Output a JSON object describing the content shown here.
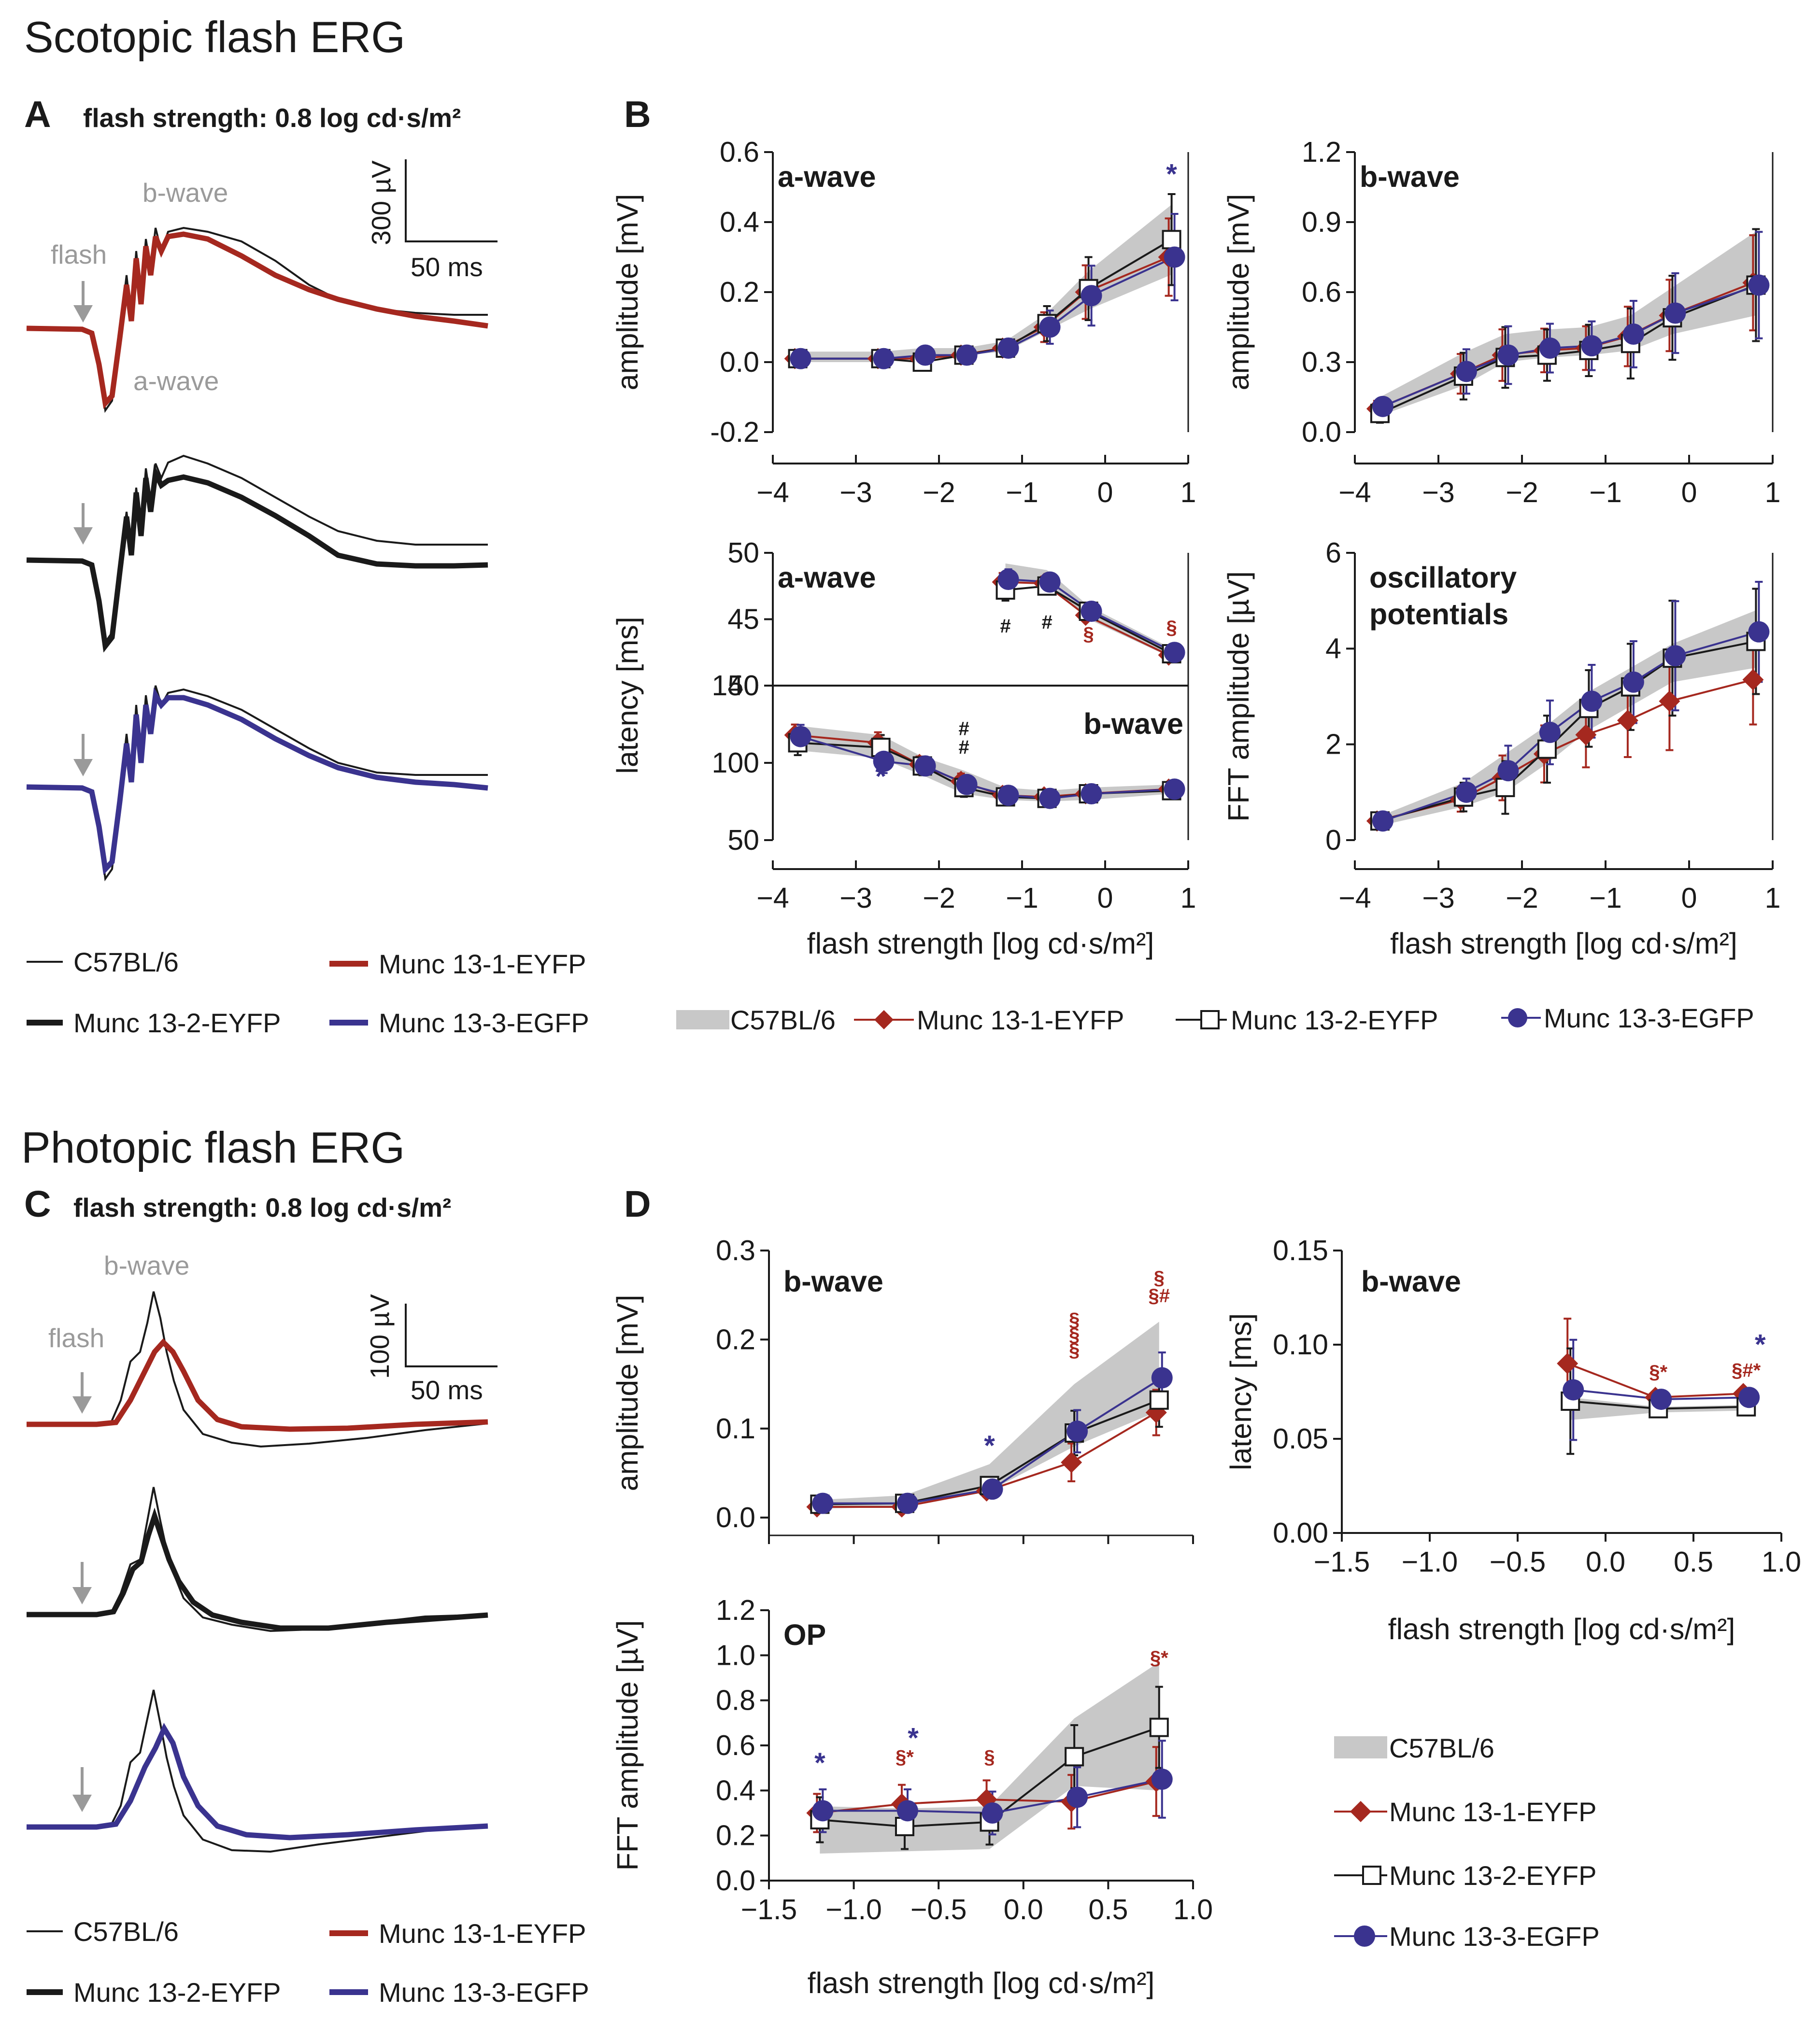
{
  "sections": {
    "scotopic_title": "Scotopic flash ERG",
    "photopic_title": "Photopic flash ERG"
  },
  "panels": {
    "A": {
      "letter": "A",
      "flash_label": "flash strength: 0.8 log cd·s/m²",
      "scale_y": "300 µV",
      "scale_x": "50 ms",
      "flash": "flash",
      "awave": "a-wave",
      "bwave": "b-wave"
    },
    "B": {
      "letter": "B"
    },
    "C": {
      "letter": "C",
      "flash_label": "flash strength: 0.8 log cd·s/m²",
      "scale_y": "100 µV",
      "scale_x": "50 ms",
      "flash": "flash",
      "bwave": "b-wave"
    },
    "D": {
      "letter": "D"
    }
  },
  "trace_legend": [
    "C57BL/6",
    "Munc 13-1-EYFP",
    "Munc 13-2-EYFP",
    "Munc 13-3-EGFP"
  ],
  "series_legend": [
    "C57BL/6",
    "Munc 13-1-EYFP",
    "Munc 13-2-EYFP",
    "Munc 13-3-EGFP"
  ],
  "colors": {
    "wt": "#1a1a1a",
    "m1": "#a5281f",
    "m2": "#1a1a1a",
    "m3": "#3a338f",
    "band": "#c8c8c8"
  },
  "chart_data": [
    {
      "id": "B1",
      "type": "line",
      "title": "a-wave",
      "xlabel": "",
      "ylabel": "amplitude [mV]",
      "xlim": [
        -4,
        1
      ],
      "ylim": [
        -0.2,
        0.6
      ],
      "xticks": [
        -4,
        -3,
        -2,
        -1,
        0,
        1
      ],
      "xtick_labels": [
        "−4",
        "−3",
        "−2",
        "−1",
        "0",
        "1"
      ],
      "yticks": [
        -0.2,
        0,
        0.2,
        0.4,
        0.6
      ],
      "ytick_labels": [
        "-0.2",
        "0.0",
        "0.2",
        "0.4",
        "0.6"
      ],
      "x": [
        -3.7,
        -2.7,
        -2.2,
        -1.7,
        -1.2,
        -0.7,
        -0.2,
        0.8
      ],
      "band": {
        "name": "C57BL/6",
        "lower": [
          0.0,
          0.0,
          0.01,
          0.02,
          0.03,
          0.09,
          0.15,
          0.25
        ],
        "upper": [
          0.03,
          0.03,
          0.04,
          0.04,
          0.06,
          0.14,
          0.26,
          0.45
        ]
      },
      "series": [
        {
          "name": "Munc 13-1-EYFP",
          "values": [
            0.01,
            0.01,
            0.01,
            0.02,
            0.04,
            0.1,
            0.2,
            0.3
          ]
        },
        {
          "name": "Munc 13-2-EYFP",
          "values": [
            0.01,
            0.01,
            0.0,
            0.02,
            0.04,
            0.11,
            0.21,
            0.35
          ]
        },
        {
          "name": "Munc 13-3-EGFP",
          "values": [
            0.01,
            0.01,
            0.02,
            0.02,
            0.04,
            0.1,
            0.19,
            0.3
          ]
        }
      ],
      "errors": [
        0.02,
        0.02,
        0.02,
        0.02,
        0.02,
        0.05,
        0.09,
        0.13
      ],
      "annotations": [
        {
          "text": "*",
          "x": 0.8,
          "y": 0.51,
          "color": "m3"
        }
      ]
    },
    {
      "id": "B2",
      "type": "line",
      "title": "b-wave",
      "xlabel": "",
      "ylabel": "amplitude [mV]",
      "xlim": [
        -4,
        1
      ],
      "ylim": [
        0,
        1.2
      ],
      "xticks": [
        -4,
        -3,
        -2,
        -1,
        0,
        1
      ],
      "xtick_labels": [
        "−4",
        "−3",
        "−2",
        "−1",
        "0",
        "1"
      ],
      "yticks": [
        0,
        0.3,
        0.6,
        0.9,
        1.2
      ],
      "ytick_labels": [
        "0.0",
        "0.3",
        "0.6",
        "0.9",
        "1.2"
      ],
      "x": [
        -3.7,
        -2.7,
        -2.2,
        -1.7,
        -1.2,
        -0.7,
        -0.2,
        0.8
      ],
      "band": {
        "name": "C57BL/6",
        "lower": [
          0.07,
          0.2,
          0.3,
          0.32,
          0.33,
          0.35,
          0.42,
          0.5
        ],
        "upper": [
          0.15,
          0.34,
          0.42,
          0.44,
          0.45,
          0.5,
          0.62,
          0.86
        ]
      },
      "series": [
        {
          "name": "Munc 13-1-EYFP",
          "values": [
            0.1,
            0.25,
            0.33,
            0.35,
            0.36,
            0.41,
            0.5,
            0.64
          ]
        },
        {
          "name": "Munc 13-2-EYFP",
          "values": [
            0.08,
            0.24,
            0.32,
            0.33,
            0.35,
            0.38,
            0.49,
            0.63
          ]
        },
        {
          "name": "Munc 13-3-EGFP",
          "values": [
            0.11,
            0.26,
            0.33,
            0.36,
            0.37,
            0.42,
            0.51,
            0.63
          ]
        }
      ],
      "errors": [
        0.04,
        0.1,
        0.13,
        0.11,
        0.11,
        0.15,
        0.18,
        0.24
      ],
      "annotations": []
    },
    {
      "id": "B3a",
      "type": "line",
      "title": "a-wave",
      "xlabel": "",
      "ylabel": "latency [ms]",
      "xlim": [
        -4,
        1
      ],
      "ylim": [
        40,
        50
      ],
      "yticks": [
        40,
        45,
        50
      ],
      "ytick_labels": [
        "40",
        "45",
        "50"
      ],
      "x": [
        -1.2,
        -0.7,
        -0.2,
        0.8
      ],
      "band": {
        "name": "C57BL/6",
        "lower": [
          47.8,
          47.8,
          45.0,
          42.1
        ],
        "upper": [
          49.2,
          48.7,
          46.0,
          42.8
        ]
      },
      "series": [
        {
          "name": "Munc 13-1-EYFP",
          "values": [
            47.8,
            47.7,
            45.3,
            42.3
          ]
        },
        {
          "name": "Munc 13-2-EYFP",
          "values": [
            47.2,
            47.5,
            45.6,
            42.4
          ]
        },
        {
          "name": "Munc 13-3-EGFP",
          "values": [
            48.0,
            47.8,
            45.6,
            42.5
          ]
        }
      ],
      "errors": [
        0.8,
        0.6,
        0.5,
        0.4
      ],
      "annotations": [
        {
          "text": "#",
          "x": -1.2,
          "y": 44.0,
          "color": "wt"
        },
        {
          "text": "#",
          "x": -0.7,
          "y": 44.3,
          "color": "wt"
        },
        {
          "text": "§",
          "x": -0.2,
          "y": 43.4,
          "color": "m1"
        },
        {
          "text": "§",
          "x": 0.8,
          "y": 43.9,
          "color": "m1"
        }
      ]
    },
    {
      "id": "B3b",
      "type": "line",
      "title": "b-wave",
      "xlabel": "flash strength [log cd·s/m²]",
      "ylabel": "",
      "xlim": [
        -4,
        1
      ],
      "ylim": [
        50,
        150
      ],
      "xticks": [
        -4,
        -3,
        -2,
        -1,
        0,
        1
      ],
      "xtick_labels": [
        "−4",
        "−3",
        "−2",
        "−1",
        "0",
        "1"
      ],
      "yticks": [
        50,
        100,
        150
      ],
      "ytick_labels": [
        "50",
        "100",
        "150"
      ],
      "x": [
        -3.7,
        -2.7,
        -2.2,
        -1.7,
        -1.2,
        -0.7,
        -0.2,
        0.8
      ],
      "band": {
        "name": "C57BL/6",
        "lower": [
          108,
          103,
          92,
          80,
          76,
          75,
          76,
          80
        ],
        "upper": [
          124,
          118,
          104,
          95,
          84,
          82,
          84,
          86
        ]
      },
      "series": [
        {
          "name": "Munc 13-1-EYFP",
          "values": [
            118,
            113,
            99,
            88,
            79,
            78,
            80,
            83
          ]
        },
        {
          "name": "Munc 13-2-EYFP",
          "values": [
            113,
            110,
            98,
            84,
            78,
            77,
            80,
            82
          ]
        },
        {
          "name": "Munc 13-3-EGFP",
          "values": [
            117,
            101,
            98,
            86,
            79,
            77,
            80,
            83
          ]
        }
      ],
      "errors": [
        8,
        8,
        6,
        6,
        4,
        4,
        4,
        3
      ],
      "annotations": [
        {
          "text": "*",
          "x": -2.7,
          "y": 85,
          "color": "m3"
        },
        {
          "text": "#",
          "x": -1.7,
          "y": 118,
          "color": "wt"
        },
        {
          "text": "#",
          "x": -1.7,
          "y": 106,
          "color": "wt"
        }
      ]
    },
    {
      "id": "B4",
      "type": "line",
      "title": "oscillatory potentials",
      "xlabel": "flash strength [log cd·s/m²]",
      "ylabel": "FFT amplitude [µV]",
      "xlim": [
        -4,
        1
      ],
      "ylim": [
        0,
        6
      ],
      "xticks": [
        -4,
        -3,
        -2,
        -1,
        0,
        1
      ],
      "xtick_labels": [
        "−4",
        "−3",
        "−2",
        "−1",
        "0",
        "1"
      ],
      "yticks": [
        0,
        2,
        4,
        6
      ],
      "ytick_labels": [
        "0",
        "2",
        "4",
        "6"
      ],
      "x": [
        -3.7,
        -2.7,
        -2.2,
        -1.7,
        -1.2,
        -0.7,
        -0.2,
        0.8
      ],
      "band": {
        "name": "C57BL/6",
        "lower": [
          0.3,
          0.7,
          1.0,
          1.6,
          2.3,
          2.8,
          3.3,
          3.6
        ],
        "upper": [
          0.5,
          1.2,
          1.8,
          2.4,
          3.1,
          3.6,
          4.1,
          4.8
        ]
      },
      "series": [
        {
          "name": "Munc 13-1-EYFP",
          "values": [
            0.4,
            0.85,
            1.3,
            1.8,
            2.2,
            2.5,
            2.9,
            3.35
          ]
        },
        {
          "name": "Munc 13-2-EYFP",
          "values": [
            0.4,
            0.9,
            1.1,
            1.9,
            2.75,
            3.2,
            3.8,
            4.15
          ]
        },
        {
          "name": "Munc 13-3-EGFP",
          "values": [
            0.4,
            1.0,
            1.45,
            2.25,
            2.9,
            3.3,
            3.85,
            4.35
          ]
        }
      ],
      "errors": [
        0.15,
        0.3,
        0.55,
        0.7,
        0.8,
        0.9,
        1.2,
        1.1
      ],
      "annotations": []
    },
    {
      "id": "D1",
      "type": "line",
      "title": "b-wave",
      "xlabel": "",
      "ylabel": "amplitude [mV]",
      "xlim": [
        -1.5,
        1.0
      ],
      "ylim": [
        -0.02,
        0.3
      ],
      "yticks": [
        0,
        0.1,
        0.2,
        0.3
      ],
      "ytick_labels": [
        "0.0",
        "0.1",
        "0.2",
        "0.3"
      ],
      "x": [
        -1.2,
        -0.7,
        -0.2,
        0.3,
        0.8
      ],
      "band": {
        "name": "C57BL/6",
        "lower": [
          0.01,
          0.012,
          0.03,
          0.08,
          0.12
        ],
        "upper": [
          0.02,
          0.025,
          0.06,
          0.15,
          0.22
        ]
      },
      "series": [
        {
          "name": "Munc 13-1-EYFP",
          "values": [
            0.012,
            0.012,
            0.03,
            0.062,
            0.118
          ]
        },
        {
          "name": "Munc 13-2-EYFP",
          "values": [
            0.015,
            0.016,
            0.036,
            0.095,
            0.132
          ]
        },
        {
          "name": "Munc 13-3-EGFP",
          "values": [
            0.016,
            0.016,
            0.032,
            0.097,
            0.157
          ]
        }
      ],
      "errors": [
        0.004,
        0.004,
        0.008,
        0.025,
        0.03
      ],
      "annotations": [
        {
          "text": "*",
          "x": -0.2,
          "y": 0.07,
          "color": "m3"
        },
        {
          "text": "§",
          "x": 0.3,
          "y": 0.215,
          "color": "m1"
        },
        {
          "text": "§",
          "x": 0.3,
          "y": 0.198,
          "color": "m1"
        },
        {
          "text": "§",
          "x": 0.3,
          "y": 0.181,
          "color": "m1"
        },
        {
          "text": "§",
          "x": 0.8,
          "y": 0.262,
          "color": "m1"
        },
        {
          "text": "§#",
          "x": 0.8,
          "y": 0.242,
          "color": "m1"
        }
      ]
    },
    {
      "id": "D2",
      "type": "line",
      "title": "b-wave",
      "xlabel": "flash strength [log cd·s/m²]",
      "ylabel": "latency [ms]",
      "xlim": [
        -1.5,
        1.0
      ],
      "ylim": [
        0,
        0.15
      ],
      "xticks": [
        -1.5,
        -1.0,
        -0.5,
        0.0,
        0.5,
        1.0
      ],
      "xtick_labels": [
        "−1.5",
        "−1.0",
        "−0.5",
        "0.0",
        "0.5",
        "1.0"
      ],
      "yticks": [
        0,
        0.05,
        0.1,
        0.15
      ],
      "ytick_labels": [
        "0.00",
        "0.05",
        "0.10",
        "0.15"
      ],
      "x": [
        -0.2,
        0.3,
        0.8
      ],
      "band": {
        "name": "C57BL/6",
        "lower": [
          0.06,
          0.064,
          0.065
        ],
        "upper": [
          0.072,
          0.067,
          0.068
        ]
      },
      "series": [
        {
          "name": "Munc 13-1-EYFP",
          "values": [
            0.09,
            0.072,
            0.074
          ]
        },
        {
          "name": "Munc 13-2-EYFP",
          "values": [
            0.07,
            0.066,
            0.067
          ]
        },
        {
          "name": "Munc 13-3-EGFP",
          "values": [
            0.076,
            0.071,
            0.072
          ]
        }
      ],
      "errors": [
        0.028,
        0.003,
        0.003
      ],
      "annotations": [
        {
          "text": "§*",
          "x": 0.3,
          "y": 0.082,
          "color": "m1"
        },
        {
          "text": "§#*",
          "x": 0.8,
          "y": 0.083,
          "color": "m1"
        },
        {
          "text": "*",
          "x": 0.88,
          "y": 0.095,
          "color": "m3"
        }
      ]
    },
    {
      "id": "D3",
      "type": "line",
      "title": "OP",
      "xlabel": "flash strength [log cd·s/m²]",
      "ylabel": "FFT amplitude [µV]",
      "xlim": [
        -1.5,
        1.0
      ],
      "ylim": [
        0,
        1.2
      ],
      "xticks": [
        -1.5,
        -1.0,
        -0.5,
        0.0,
        0.5,
        1.0
      ],
      "xtick_labels": [
        "−1.5",
        "−1.0",
        "−0.5",
        "0.0",
        "0.5",
        "1.0"
      ],
      "yticks": [
        0,
        0.2,
        0.4,
        0.6,
        0.8,
        1.0,
        1.2
      ],
      "ytick_labels": [
        "0.0",
        "0.2",
        "0.4",
        "0.6",
        "0.8",
        "1.0",
        "1.2"
      ],
      "x": [
        -1.2,
        -0.7,
        -0.2,
        0.3,
        0.8
      ],
      "band": {
        "name": "C57BL/6",
        "lower": [
          0.12,
          0.13,
          0.14,
          0.42,
          0.4
        ],
        "upper": [
          0.33,
          0.32,
          0.33,
          0.72,
          0.97
        ]
      },
      "series": [
        {
          "name": "Munc 13-1-EYFP",
          "values": [
            0.3,
            0.34,
            0.36,
            0.35,
            0.44
          ]
        },
        {
          "name": "Munc 13-2-EYFP",
          "values": [
            0.27,
            0.24,
            0.26,
            0.55,
            0.68
          ]
        },
        {
          "name": "Munc 13-3-EGFP",
          "values": [
            0.31,
            0.31,
            0.3,
            0.37,
            0.45
          ]
        }
      ],
      "errors": [
        0.1,
        0.1,
        0.1,
        0.14,
        0.18
      ],
      "annotations": [
        {
          "text": "*",
          "x": -1.2,
          "y": 0.48,
          "color": "m3"
        },
        {
          "text": "§*",
          "x": -0.7,
          "y": 0.52,
          "color": "m1"
        },
        {
          "text": "*",
          "x": -0.65,
          "y": 0.59,
          "color": "m3"
        },
        {
          "text": "§",
          "x": -0.2,
          "y": 0.52,
          "color": "m1"
        },
        {
          "text": "§*",
          "x": 0.8,
          "y": 0.96,
          "color": "m1"
        }
      ]
    }
  ]
}
